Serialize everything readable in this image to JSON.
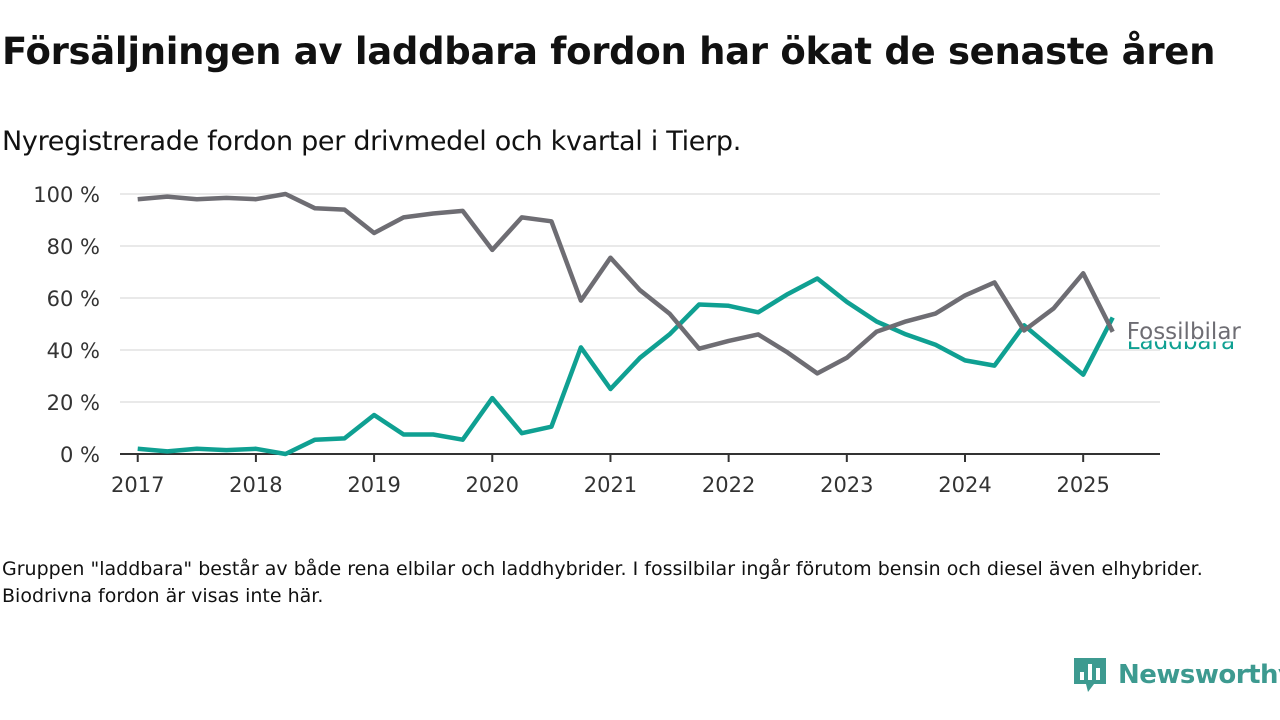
{
  "title": "Försäljningen av laddbara fordon har ökat de senaste åren",
  "subtitle": "Nyregistrerade fordon per drivmedel och kvartal i Tierp.",
  "note": "Gruppen \"laddbara\" består av både rena elbilar och laddhybrider. I fossilbilar ingår förutom bensin och diesel även elhybrider. Biodrivna fordon är visas inte här.",
  "brand": {
    "name": "Newsworthy",
    "color": "#3d9a90",
    "icon": "newsworthy-logo-icon"
  },
  "chart_data": {
    "type": "line",
    "x_unit": "year (quarterly)",
    "xlim": [
      2016.85,
      2025.65
    ],
    "ylim": [
      0,
      100
    ],
    "x_ticks": [
      2017,
      2018,
      2019,
      2020,
      2021,
      2022,
      2023,
      2024,
      2025
    ],
    "x_tick_labels": [
      "2017",
      "2018",
      "2019",
      "2020",
      "2021",
      "2022",
      "2023",
      "2024",
      "2025"
    ],
    "y_ticks": [
      0,
      20,
      40,
      60,
      80,
      100
    ],
    "y_tick_labels": [
      "0 %",
      "20 %",
      "40 %",
      "60 %",
      "80 %",
      "100 %"
    ],
    "grid": "horizontal",
    "x": [
      2017.0,
      2017.25,
      2017.5,
      2017.75,
      2018.0,
      2018.25,
      2018.5,
      2018.75,
      2019.0,
      2019.25,
      2019.5,
      2019.75,
      2020.0,
      2020.25,
      2020.5,
      2020.75,
      2021.0,
      2021.25,
      2021.5,
      2021.75,
      2022.0,
      2022.25,
      2022.5,
      2022.75,
      2023.0,
      2023.25,
      2023.5,
      2023.75,
      2024.0,
      2024.25,
      2024.5,
      2024.75,
      2025.0,
      2025.25
    ],
    "series": [
      {
        "name": "Fossilbilar",
        "color": "#6e6d73",
        "values": [
          98,
          99,
          98,
          98.5,
          98,
          100,
          94.5,
          94,
          85,
          91,
          92.5,
          93.5,
          78.5,
          91,
          89.5,
          59,
          75.5,
          63,
          54,
          40.5,
          43.5,
          46,
          39,
          31,
          37,
          47,
          51,
          54,
          61,
          66,
          47.5,
          56,
          69.5,
          47
        ]
      },
      {
        "name": "Laddbara",
        "color": "#0fa092",
        "values": [
          2,
          1,
          2,
          1.5,
          2,
          0,
          5.5,
          6,
          15,
          7.5,
          7.5,
          5.5,
          21.5,
          8,
          10.5,
          41,
          25,
          37,
          46,
          57.5,
          57,
          54.5,
          61.5,
          67.5,
          58.5,
          51,
          46,
          42,
          36,
          34,
          49.5,
          40,
          30.5,
          52.5
        ]
      }
    ]
  }
}
